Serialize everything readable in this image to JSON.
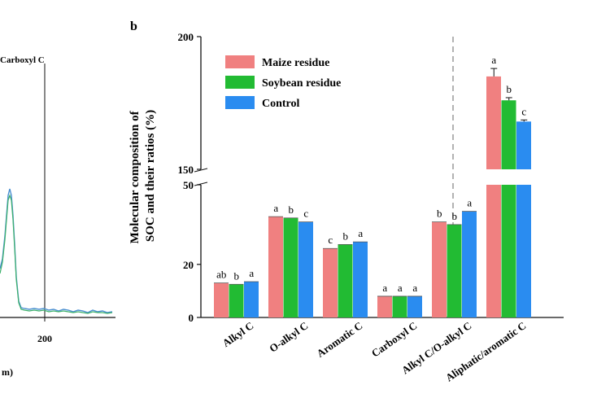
{
  "left_panel": {
    "annotation": "Carboxyl C",
    "x_tick": "200",
    "x_label_fragment": "m)",
    "spectrum_color": "#4aa3a0"
  },
  "chart_data": {
    "type": "bar",
    "panel_label": "b",
    "ylabel": "Molecular composition of SOC and their ratios (%)",
    "categories": [
      "Alkyl C",
      "O-alkyl C",
      "Aromatic C",
      "Carboxyl C",
      "Alkyl C/O-alkyl C",
      "Aliphatic/aromatic C"
    ],
    "series": [
      {
        "name": "Maize residue",
        "color": "#f08080",
        "values": [
          13,
          38,
          26,
          8,
          36,
          185
        ],
        "letters": [
          "ab",
          "a",
          "c",
          "a",
          "b",
          "a"
        ]
      },
      {
        "name": "Soybean residue",
        "color": "#22bb33",
        "values": [
          12.5,
          37.5,
          27.5,
          8,
          35,
          176
        ],
        "letters": [
          "b",
          "b",
          "b",
          "a",
          "b",
          "b"
        ]
      },
      {
        "name": "Control",
        "color": "#2a8cf0",
        "values": [
          13.5,
          36,
          28.5,
          8,
          40,
          168
        ],
        "letters": [
          "a",
          "c",
          "a",
          "a",
          "a",
          "c"
        ]
      }
    ],
    "errors": [
      [
        0,
        0,
        0
      ],
      [
        0,
        0,
        0
      ],
      [
        0,
        0,
        0
      ],
      [
        0,
        0,
        0
      ],
      [
        0,
        0,
        0
      ],
      [
        3,
        1,
        0.6
      ]
    ],
    "axis_break": {
      "lower": [
        0,
        50
      ],
      "upper": [
        150,
        200
      ]
    },
    "y_ticks": [
      "0",
      "20",
      "50",
      "150",
      "200"
    ],
    "y_tick_values": [
      0,
      20,
      50,
      150,
      200
    ],
    "legend_position": "top-left",
    "divider_after_category": 4
  }
}
